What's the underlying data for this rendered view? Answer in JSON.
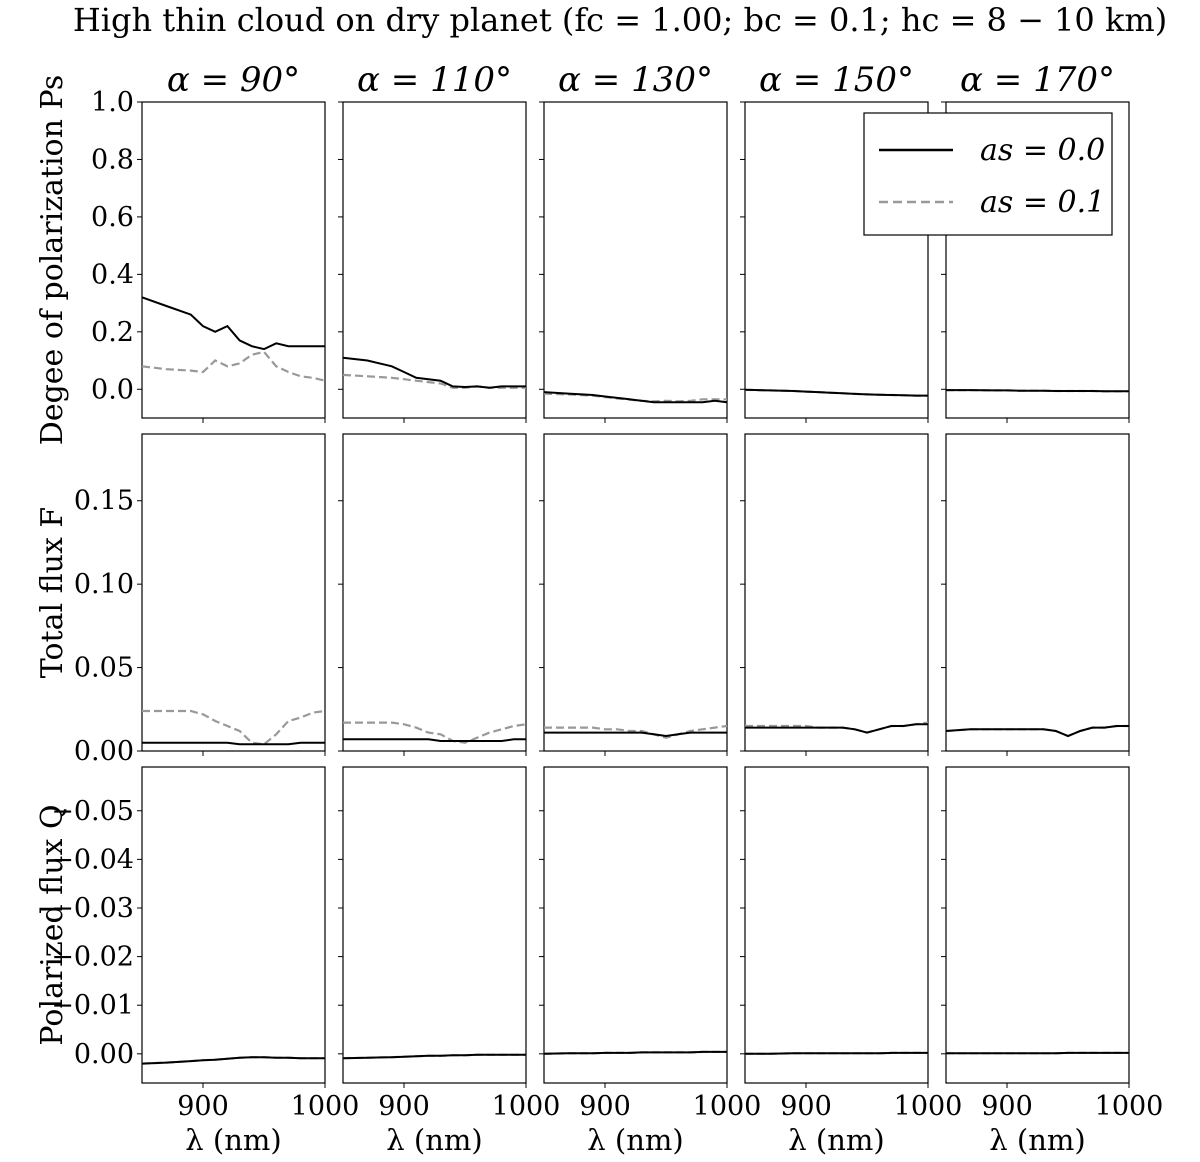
{
  "figure": {
    "title": "High thin cloud on dry planet (fₑ = 1.00; bᶜ = 0.1; hᶜ = 8 − 10 km)",
    "title_display": "High thin cloud on dry planet (fc = 1.00; bc = 0.1; hc = 8 − 10 km)",
    "columns": [
      "α = 90°",
      "α = 110°",
      "α = 130°",
      "α = 150°",
      "α = 170°"
    ],
    "row_labels": [
      "Degee of polarization Ps",
      "Total flux F",
      "Polarized flux Q"
    ],
    "x_label": "λ (nm)",
    "legend": {
      "placement": "top-right of row 1 (spanning last two panels)",
      "entries": [
        {
          "label": "as = 0.0",
          "style": "solid",
          "color": "#000000"
        },
        {
          "label": "as = 0.1",
          "style": "dashed",
          "color": "#999999"
        }
      ]
    },
    "colors": {
      "series_a": "#000000",
      "series_b": "#999999",
      "grid": "none"
    }
  },
  "chart_data": [
    {
      "type": "line",
      "row": "Degree of polarization",
      "ylabel": "Degee of polarization Ps",
      "xlim": [
        850,
        1000
      ],
      "ylim": [
        -0.1,
        1.0
      ],
      "xticks": [
        900,
        1000
      ],
      "yticks": [
        0.0,
        0.2,
        0.4,
        0.6,
        0.8,
        1.0
      ],
      "ytick_labels": [
        "0.0",
        "0.2",
        "0.4",
        "0.6",
        "0.8",
        "1.0"
      ],
      "x": [
        850,
        870,
        890,
        900,
        910,
        920,
        930,
        940,
        950,
        960,
        970,
        980,
        990,
        1000
      ],
      "panels": [
        {
          "alpha": "90",
          "series": [
            {
              "name": "as = 0.0",
              "values": [
                0.32,
                0.29,
                0.26,
                0.22,
                0.2,
                0.22,
                0.17,
                0.15,
                0.14,
                0.16,
                0.15,
                0.15,
                0.15,
                0.15
              ]
            },
            {
              "name": "as = 0.1",
              "values": [
                0.08,
                0.07,
                0.065,
                0.06,
                0.1,
                0.08,
                0.09,
                0.12,
                0.13,
                0.08,
                0.06,
                0.045,
                0.04,
                0.03
              ]
            }
          ]
        },
        {
          "alpha": "110",
          "series": [
            {
              "name": "as = 0.0",
              "values": [
                0.11,
                0.1,
                0.08,
                0.06,
                0.04,
                0.035,
                0.03,
                0.01,
                0.008,
                0.01,
                0.005,
                0.01,
                0.01,
                0.01
              ]
            },
            {
              "name": "as = 0.1",
              "values": [
                0.05,
                0.045,
                0.04,
                0.035,
                0.03,
                0.025,
                0.02,
                0.005,
                0.005,
                0.01,
                0.005,
                0.005,
                0.005,
                0.005
              ]
            }
          ]
        },
        {
          "alpha": "130",
          "series": [
            {
              "name": "as = 0.0",
              "values": [
                -0.01,
                -0.015,
                -0.02,
                -0.025,
                -0.03,
                -0.035,
                -0.04,
                -0.045,
                -0.045,
                -0.045,
                -0.045,
                -0.045,
                -0.04,
                -0.045
              ]
            },
            {
              "name": "as = 0.1",
              "values": [
                -0.015,
                -0.018,
                -0.022,
                -0.027,
                -0.032,
                -0.036,
                -0.04,
                -0.042,
                -0.04,
                -0.042,
                -0.04,
                -0.035,
                -0.035,
                -0.035
              ]
            }
          ]
        },
        {
          "alpha": "150",
          "series": [
            {
              "name": "as = 0.0",
              "values": [
                -0.002,
                -0.004,
                -0.006,
                -0.008,
                -0.01,
                -0.012,
                -0.014,
                -0.016,
                -0.018,
                -0.019,
                -0.02,
                -0.021,
                -0.022,
                -0.022
              ]
            },
            {
              "name": "as = 0.1",
              "values": [
                -0.002,
                -0.004,
                -0.006,
                -0.008,
                -0.01,
                -0.012,
                -0.014,
                -0.016,
                -0.018,
                -0.019,
                -0.02,
                -0.021,
                -0.022,
                -0.022
              ]
            }
          ]
        },
        {
          "alpha": "170",
          "series": [
            {
              "name": "as = 0.0",
              "values": [
                -0.003,
                -0.003,
                -0.004,
                -0.004,
                -0.005,
                -0.005,
                -0.005,
                -0.006,
                -0.006,
                -0.006,
                -0.006,
                -0.007,
                -0.007,
                -0.007
              ]
            },
            {
              "name": "as = 0.1",
              "values": [
                -0.003,
                -0.003,
                -0.004,
                -0.004,
                -0.005,
                -0.005,
                -0.005,
                -0.006,
                -0.006,
                -0.006,
                -0.006,
                -0.007,
                -0.007,
                -0.007
              ]
            }
          ]
        }
      ]
    },
    {
      "type": "line",
      "row": "Total flux",
      "ylabel": "Total flux F",
      "xlim": [
        850,
        1000
      ],
      "ylim": [
        0.0,
        0.19
      ],
      "xticks": [
        900,
        1000
      ],
      "yticks": [
        0.0,
        0.05,
        0.1,
        0.15
      ],
      "ytick_labels": [
        "0.00",
        "0.05",
        "0.10",
        "0.15"
      ],
      "x": [
        850,
        870,
        890,
        900,
        910,
        920,
        930,
        940,
        950,
        960,
        970,
        980,
        990,
        1000
      ],
      "panels": [
        {
          "alpha": "90",
          "series": [
            {
              "name": "as = 0.0",
              "values": [
                0.005,
                0.005,
                0.005,
                0.005,
                0.005,
                0.005,
                0.004,
                0.004,
                0.004,
                0.004,
                0.004,
                0.005,
                0.005,
                0.005
              ]
            },
            {
              "name": "as = 0.1",
              "values": [
                0.024,
                0.024,
                0.024,
                0.022,
                0.018,
                0.015,
                0.012,
                0.005,
                0.004,
                0.01,
                0.018,
                0.02,
                0.023,
                0.024
              ]
            }
          ]
        },
        {
          "alpha": "110",
          "series": [
            {
              "name": "as = 0.0",
              "values": [
                0.007,
                0.007,
                0.007,
                0.007,
                0.007,
                0.007,
                0.006,
                0.006,
                0.006,
                0.006,
                0.006,
                0.006,
                0.007,
                0.007
              ]
            },
            {
              "name": "as = 0.1",
              "values": [
                0.017,
                0.017,
                0.017,
                0.016,
                0.014,
                0.011,
                0.01,
                0.006,
                0.005,
                0.008,
                0.011,
                0.013,
                0.015,
                0.016
              ]
            }
          ]
        },
        {
          "alpha": "130",
          "series": [
            {
              "name": "as = 0.0",
              "values": [
                0.011,
                0.011,
                0.011,
                0.011,
                0.011,
                0.011,
                0.011,
                0.01,
                0.009,
                0.01,
                0.011,
                0.011,
                0.011,
                0.011
              ]
            },
            {
              "name": "as = 0.1",
              "values": [
                0.014,
                0.014,
                0.014,
                0.013,
                0.013,
                0.012,
                0.012,
                0.01,
                0.008,
                0.01,
                0.012,
                0.013,
                0.014,
                0.015
              ]
            }
          ]
        },
        {
          "alpha": "150",
          "series": [
            {
              "name": "as = 0.0",
              "values": [
                0.014,
                0.014,
                0.014,
                0.014,
                0.014,
                0.014,
                0.014,
                0.013,
                0.011,
                0.013,
                0.015,
                0.015,
                0.016,
                0.016
              ]
            },
            {
              "name": "as = 0.1",
              "values": [
                0.015,
                0.015,
                0.015,
                0.015,
                0.014,
                0.014,
                0.014,
                0.013,
                0.011,
                0.013,
                0.015,
                0.015,
                0.016,
                0.017
              ]
            }
          ]
        },
        {
          "alpha": "170",
          "series": [
            {
              "name": "as = 0.0",
              "values": [
                0.012,
                0.013,
                0.013,
                0.013,
                0.013,
                0.013,
                0.013,
                0.012,
                0.009,
                0.012,
                0.014,
                0.014,
                0.015,
                0.015
              ]
            },
            {
              "name": "as = 0.1",
              "values": [
                0.012,
                0.013,
                0.013,
                0.013,
                0.013,
                0.013,
                0.013,
                0.012,
                0.009,
                0.012,
                0.014,
                0.014,
                0.015,
                0.015
              ]
            }
          ]
        }
      ]
    },
    {
      "type": "line",
      "row": "Polarized flux",
      "ylabel": "Polarized flux Q",
      "xlim": [
        850,
        1000
      ],
      "ylim": [
        0.006,
        -0.059
      ],
      "inverted_y": true,
      "xticks": [
        900,
        1000
      ],
      "xtick_labels": [
        "900",
        "1000"
      ],
      "yticks": [
        0.0,
        -0.01,
        -0.02,
        -0.03,
        -0.04,
        -0.05
      ],
      "ytick_labels": [
        "0.00",
        "−0.01",
        "−0.02",
        "−0.03",
        "−0.04",
        "−0.05"
      ],
      "x": [
        850,
        870,
        890,
        900,
        910,
        920,
        930,
        940,
        950,
        960,
        970,
        980,
        990,
        1000
      ],
      "panels": [
        {
          "alpha": "90",
          "series": [
            {
              "name": "as = 0.0",
              "values": [
                0.002,
                0.0018,
                0.0015,
                0.0013,
                0.0012,
                0.001,
                0.0008,
                0.0007,
                0.0007,
                0.0008,
                0.0008,
                0.0009,
                0.0009,
                0.0009
              ]
            },
            {
              "name": "as = 0.1",
              "values": [
                0.002,
                0.0018,
                0.0015,
                0.0013,
                0.0012,
                0.001,
                0.0008,
                0.0007,
                0.0007,
                0.0008,
                0.0008,
                0.0009,
                0.0009,
                0.0009
              ]
            }
          ]
        },
        {
          "alpha": "110",
          "series": [
            {
              "name": "as = 0.0",
              "values": [
                0.0009,
                0.0008,
                0.0007,
                0.0006,
                0.0005,
                0.0004,
                0.0004,
                0.0003,
                0.0003,
                0.0002,
                0.0002,
                0.0002,
                0.0002,
                0.0002
              ]
            },
            {
              "name": "as = 0.1",
              "values": [
                0.0009,
                0.0008,
                0.0007,
                0.0006,
                0.0005,
                0.0004,
                0.0004,
                0.0003,
                0.0003,
                0.0002,
                0.0002,
                0.0002,
                0.0002,
                0.0002
              ]
            }
          ]
        },
        {
          "alpha": "130",
          "series": [
            {
              "name": "as = 0.0",
              "values": [
                0.0,
                -0.0001,
                -0.0001,
                -0.0002,
                -0.0002,
                -0.0002,
                -0.0003,
                -0.0003,
                -0.0003,
                -0.0003,
                -0.0003,
                -0.0004,
                -0.0004,
                -0.0004
              ]
            },
            {
              "name": "as = 0.1",
              "values": [
                0.0,
                -0.0001,
                -0.0001,
                -0.0002,
                -0.0002,
                -0.0002,
                -0.0003,
                -0.0003,
                -0.0003,
                -0.0003,
                -0.0003,
                -0.0004,
                -0.0004,
                -0.0004
              ]
            }
          ]
        },
        {
          "alpha": "150",
          "series": [
            {
              "name": "as = 0.0",
              "values": [
                0.0,
                0.0,
                -0.0001,
                -0.0001,
                -0.0001,
                -0.0001,
                -0.0001,
                -0.0001,
                -0.0001,
                -0.0001,
                -0.0002,
                -0.0002,
                -0.0002,
                -0.0002
              ]
            },
            {
              "name": "as = 0.1",
              "values": [
                0.0,
                0.0,
                -0.0001,
                -0.0001,
                -0.0001,
                -0.0001,
                -0.0001,
                -0.0001,
                -0.0001,
                -0.0001,
                -0.0002,
                -0.0002,
                -0.0002,
                -0.0002
              ]
            }
          ]
        },
        {
          "alpha": "170",
          "series": [
            {
              "name": "as = 0.0",
              "values": [
                -0.0001,
                -0.0001,
                -0.0001,
                -0.0001,
                -0.0001,
                -0.0001,
                -0.0001,
                -0.0001,
                -0.0002,
                -0.0002,
                -0.0002,
                -0.0002,
                -0.0002,
                -0.0002
              ]
            },
            {
              "name": "as = 0.1",
              "values": [
                -0.0001,
                -0.0001,
                -0.0001,
                -0.0001,
                -0.0001,
                -0.0001,
                -0.0001,
                -0.0001,
                -0.0002,
                -0.0002,
                -0.0002,
                -0.0002,
                -0.0002,
                -0.0002
              ]
            }
          ]
        }
      ]
    }
  ]
}
